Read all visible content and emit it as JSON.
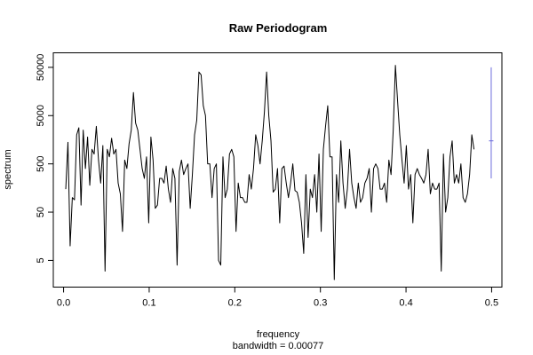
{
  "chart_data": {
    "type": "line",
    "title": "Raw Periodogram",
    "xlabel": "frequency",
    "xlabel_sub": "bandwidth = 0.00077",
    "ylabel": "spectrum",
    "y_scale": "log",
    "xlim": [
      -0.012,
      0.512
    ],
    "ylim": [
      1.4,
      100000
    ],
    "x_ticks": [
      0.0,
      0.1,
      0.2,
      0.3,
      0.4,
      0.5
    ],
    "x_tick_labels": [
      "0.0",
      "0.1",
      "0.2",
      "0.3",
      "0.4",
      "0.5"
    ],
    "y_ticks": [
      5,
      50,
      500,
      5000,
      50000
    ],
    "y_tick_labels": [
      "5",
      "50",
      "500",
      "5000",
      "50000"
    ],
    "grid": false,
    "colors": {
      "series": "#000000",
      "bandwidth_bar": "#6b6bdb"
    },
    "x_step": 0.00255,
    "series": [
      {
        "values": [
          150,
          1400,
          10,
          100,
          90,
          2000,
          2800,
          70,
          2500,
          400,
          1800,
          180,
          1000,
          800,
          3000,
          600,
          200,
          1200,
          3,
          1000,
          700,
          1700,
          800,
          1000,
          200,
          120,
          20,
          600,
          400,
          1300,
          2500,
          15000,
          3500,
          2500,
          1000,
          400,
          250,
          700,
          30,
          1800,
          600,
          60,
          70,
          250,
          250,
          200,
          450,
          150,
          80,
          400,
          250,
          4,
          350,
          600,
          300,
          400,
          500,
          60,
          300,
          2000,
          4000,
          40000,
          35000,
          8000,
          5000,
          500,
          500,
          100,
          400,
          500,
          5,
          4,
          700,
          100,
          150,
          800,
          1000,
          700,
          20,
          200,
          100,
          100,
          80,
          80,
          300,
          150,
          400,
          2000,
          1200,
          500,
          1500,
          6000,
          40000,
          5000,
          1500,
          130,
          150,
          400,
          30,
          400,
          450,
          200,
          100,
          200,
          500,
          140,
          130,
          80,
          30,
          7,
          300,
          15,
          150,
          100,
          300,
          50,
          800,
          20,
          1000,
          3000,
          8000,
          700,
          700,
          2,
          300,
          80,
          1500,
          200,
          60,
          150,
          1000,
          200,
          100,
          60,
          200,
          80,
          100,
          200,
          250,
          400,
          50,
          400,
          500,
          400,
          150,
          150,
          200,
          80,
          600,
          300,
          2500,
          55000,
          10000,
          2000,
          600,
          200,
          1200,
          150,
          300,
          30,
          300,
          400,
          300,
          250,
          200,
          300,
          1000,
          120,
          200,
          150,
          150,
          200,
          3,
          800,
          50,
          100,
          700,
          1500,
          200,
          300,
          200,
          500,
          100,
          80,
          120,
          300,
          2000,
          1000
        ]
      }
    ],
    "bandwidth_bar": {
      "x": 0.4995,
      "y_low": 250,
      "y_high": 50000,
      "y_center": 1500
    }
  }
}
